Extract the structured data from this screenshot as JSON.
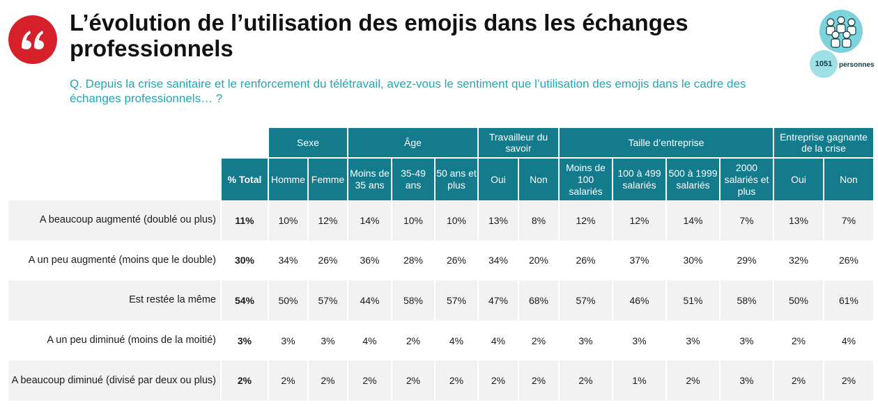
{
  "title": "L’évolution de l’utilisation des emojis dans les échanges professionnels",
  "question": "Q. Depuis la crise sanitaire et le renforcement du télétravail, avez-vous le sentiment que l’utilisation des emojis dans le cadre des échanges professionnels… ?",
  "sample": {
    "count": "1051",
    "label": "personnes"
  },
  "colors": {
    "accent": "#137b8c",
    "quote": "#d6202a",
    "question": "#1fa7b5"
  },
  "chart_data": {
    "type": "table",
    "groups": [
      {
        "label": "Sexe",
        "span": 2
      },
      {
        "label": "Âge",
        "span": 3
      },
      {
        "label": "Travailleur du savoir",
        "span": 2
      },
      {
        "label": "Taille d’entreprise",
        "span": 4
      },
      {
        "label": "Entreprise gagnante de la crise",
        "span": 2
      }
    ],
    "total_label": "% Total",
    "columns": [
      "Homme",
      "Femme",
      "Moins de 35 ans",
      "35-49 ans",
      "50 ans et plus",
      "Oui",
      "Non",
      "Moins de 100 salariés",
      "100 à 499 salariés",
      "500 à 1999 salariés",
      "2000 salariés et plus",
      "Oui",
      "Non"
    ],
    "rows": [
      {
        "label": "A beaucoup augmenté (doublé ou plus)",
        "total": "11%",
        "values": [
          "10%",
          "12%",
          "14%",
          "10%",
          "10%",
          "13%",
          "8%",
          "12%",
          "12%",
          "14%",
          "7%",
          "13%",
          "7%"
        ]
      },
      {
        "label": "A un peu augmenté (moins que le double)",
        "total": "30%",
        "values": [
          "34%",
          "26%",
          "36%",
          "28%",
          "26%",
          "34%",
          "20%",
          "26%",
          "37%",
          "30%",
          "29%",
          "32%",
          "26%"
        ]
      },
      {
        "label": "Est restée la même",
        "total": "54%",
        "values": [
          "50%",
          "57%",
          "44%",
          "58%",
          "57%",
          "47%",
          "68%",
          "57%",
          "46%",
          "51%",
          "58%",
          "50%",
          "61%"
        ]
      },
      {
        "label": "A un peu diminué (moins de la moitié)",
        "total": "3%",
        "values": [
          "3%",
          "3%",
          "4%",
          "2%",
          "4%",
          "4%",
          "2%",
          "3%",
          "3%",
          "3%",
          "3%",
          "2%",
          "4%"
        ]
      },
      {
        "label": "A beaucoup diminué (divisé par deux ou plus)",
        "total": "2%",
        "values": [
          "2%",
          "2%",
          "2%",
          "2%",
          "2%",
          "2%",
          "2%",
          "2%",
          "1%",
          "2%",
          "3%",
          "2%",
          "2%"
        ]
      }
    ]
  }
}
